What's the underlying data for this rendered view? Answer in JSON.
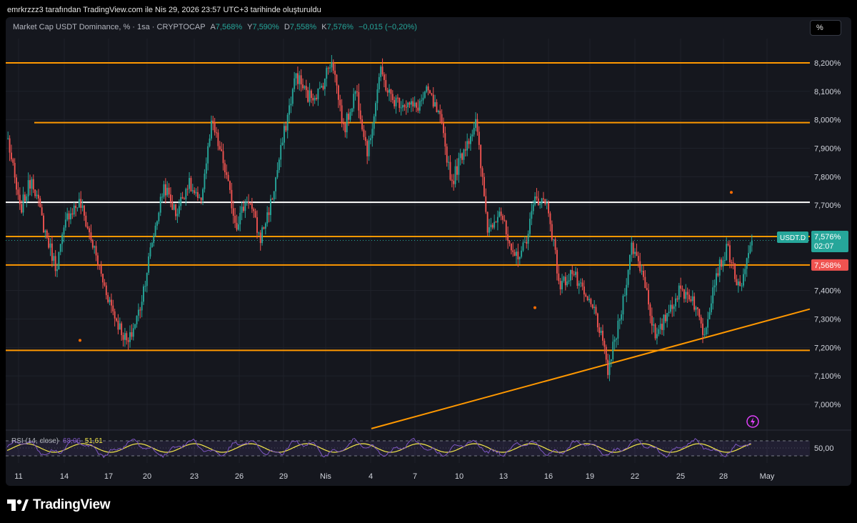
{
  "header": {
    "attribution": "emrkrzzz3 tarafından TradingView.com ile Nis 29, 2026 23:57 UTC+3 tarihinde oluşturuldu"
  },
  "legend": {
    "symbol": "Market Cap USDT Dominance, % · 1sa · CRYPTOCAP",
    "o_label": "A",
    "o_value": "7,568%",
    "h_label": "Y",
    "h_value": "7,590%",
    "l_label": "D",
    "l_value": "7,558%",
    "c_label": "K",
    "c_value": "7,576%",
    "change": "−0,015 (−0,20%)"
  },
  "scale_button": "%",
  "price_tags": {
    "symbol_tag": "USDT.D",
    "last_price": "7,576%",
    "countdown": "02:07",
    "open_price": "7,568%"
  },
  "rsi": {
    "label": "RSI (14, close)",
    "rsi_value": "68,06",
    "ma_value": "51,61",
    "axis_label": "50,00"
  },
  "footer": {
    "brand": "TradingView"
  },
  "colors": {
    "up": "#26a69a",
    "down": "#ef5350",
    "level": "#ff9800",
    "white_level": "#ffffff",
    "rsi_line": "#7e57c2",
    "rsi_ma": "#f5e94a",
    "background": "#15171e"
  },
  "chart_data": {
    "type": "candlestick",
    "symbol": "USDT.D",
    "y_axis_ticks": [
      "8,200%",
      "8,100%",
      "8,000%",
      "7,900%",
      "7,800%",
      "7,700%",
      "7,600%",
      "7,500%",
      "7,400%",
      "7,300%",
      "7,200%",
      "7,100%",
      "7,000%"
    ],
    "ylim": [
      6.93,
      8.28
    ],
    "x_axis_ticks": [
      "11",
      "14",
      "17",
      "20",
      "23",
      "26",
      "29",
      "Nis",
      "4",
      "7",
      "10",
      "13",
      "16",
      "19",
      "22",
      "25",
      "28",
      "May"
    ],
    "horizontal_levels": [
      {
        "value": 8.2,
        "color": "orange"
      },
      {
        "value": 7.99,
        "color": "orange"
      },
      {
        "value": 7.71,
        "color": "white"
      },
      {
        "value": 7.59,
        "color": "orange"
      },
      {
        "value": 7.49,
        "color": "orange"
      },
      {
        "value": 7.19,
        "color": "orange"
      }
    ],
    "trendline": {
      "from": {
        "x": "Nis 4",
        "y": 6.9
      },
      "to": {
        "x": "May",
        "y": 7.33
      },
      "color": "orange"
    },
    "path_closes": [
      {
        "x": "Mar 10",
        "y": 7.93
      },
      {
        "x": "Mar 11",
        "y": 7.68
      },
      {
        "x": "Mar 12",
        "y": 7.8
      },
      {
        "x": "Mar 13",
        "y": 7.62
      },
      {
        "x": "Mar 13",
        "y": 7.48
      },
      {
        "x": "Mar 14",
        "y": 7.67
      },
      {
        "x": "Mar 15",
        "y": 7.71
      },
      {
        "x": "Mar 16",
        "y": 7.57
      },
      {
        "x": "Mar 16",
        "y": 7.42
      },
      {
        "x": "Mar 17",
        "y": 7.3
      },
      {
        "x": "Mar 17",
        "y": 7.21
      },
      {
        "x": "Mar 18",
        "y": 7.34
      },
      {
        "x": "Mar 18",
        "y": 7.57
      },
      {
        "x": "Mar 19",
        "y": 7.77
      },
      {
        "x": "Mar 20",
        "y": 7.67
      },
      {
        "x": "Mar 21",
        "y": 7.78
      },
      {
        "x": "Mar 22",
        "y": 7.7
      },
      {
        "x": "Mar 23",
        "y": 7.99
      },
      {
        "x": "Mar 23",
        "y": 7.84
      },
      {
        "x": "Mar 24",
        "y": 7.63
      },
      {
        "x": "Mar 25",
        "y": 7.73
      },
      {
        "x": "Mar 26",
        "y": 7.58
      },
      {
        "x": "Mar 26",
        "y": 7.72
      },
      {
        "x": "Mar 27",
        "y": 7.95
      },
      {
        "x": "Mar 28",
        "y": 8.16
      },
      {
        "x": "Mar 28",
        "y": 8.08
      },
      {
        "x": "Mar 29",
        "y": 8.1
      },
      {
        "x": "Mar 30",
        "y": 8.22
      },
      {
        "x": "Mar 30",
        "y": 7.96
      },
      {
        "x": "Mar 31",
        "y": 8.11
      },
      {
        "x": "Nis 1",
        "y": 7.88
      },
      {
        "x": "Nis 2",
        "y": 8.17
      },
      {
        "x": "Nis 2",
        "y": 8.07
      },
      {
        "x": "Nis 3",
        "y": 8.06
      },
      {
        "x": "Nis 4",
        "y": 8.04
      },
      {
        "x": "Nis 5",
        "y": 8.1
      },
      {
        "x": "Nis 6",
        "y": 8.0
      },
      {
        "x": "Nis 7",
        "y": 7.78
      },
      {
        "x": "Nis 7",
        "y": 7.9
      },
      {
        "x": "Nis 8",
        "y": 7.99
      },
      {
        "x": "Nis 8",
        "y": 7.61
      },
      {
        "x": "Nis 9",
        "y": 7.69
      },
      {
        "x": "Nis 10",
        "y": 7.51
      },
      {
        "x": "Nis 11",
        "y": 7.55
      },
      {
        "x": "Nis 12",
        "y": 7.73
      },
      {
        "x": "Nis 13",
        "y": 7.7
      },
      {
        "x": "Nis 14",
        "y": 7.41
      },
      {
        "x": "Nis 15",
        "y": 7.47
      },
      {
        "x": "Nis 16",
        "y": 7.38
      },
      {
        "x": "Nis 17",
        "y": 7.32
      },
      {
        "x": "Nis 18",
        "y": 7.12
      },
      {
        "x": "Nis 19",
        "y": 7.3
      },
      {
        "x": "Nis 20",
        "y": 7.56
      },
      {
        "x": "Nis 21",
        "y": 7.45
      },
      {
        "x": "Nis 22",
        "y": 7.22
      },
      {
        "x": "Nis 23",
        "y": 7.33
      },
      {
        "x": "Nis 24",
        "y": 7.4
      },
      {
        "x": "Nis 25",
        "y": 7.38
      },
      {
        "x": "Nis 26",
        "y": 7.25
      },
      {
        "x": "Nis 27",
        "y": 7.46
      },
      {
        "x": "Nis 28",
        "y": 7.55
      },
      {
        "x": "Nis 29",
        "y": 7.39
      },
      {
        "x": "Nis 29",
        "y": 7.576
      }
    ]
  }
}
